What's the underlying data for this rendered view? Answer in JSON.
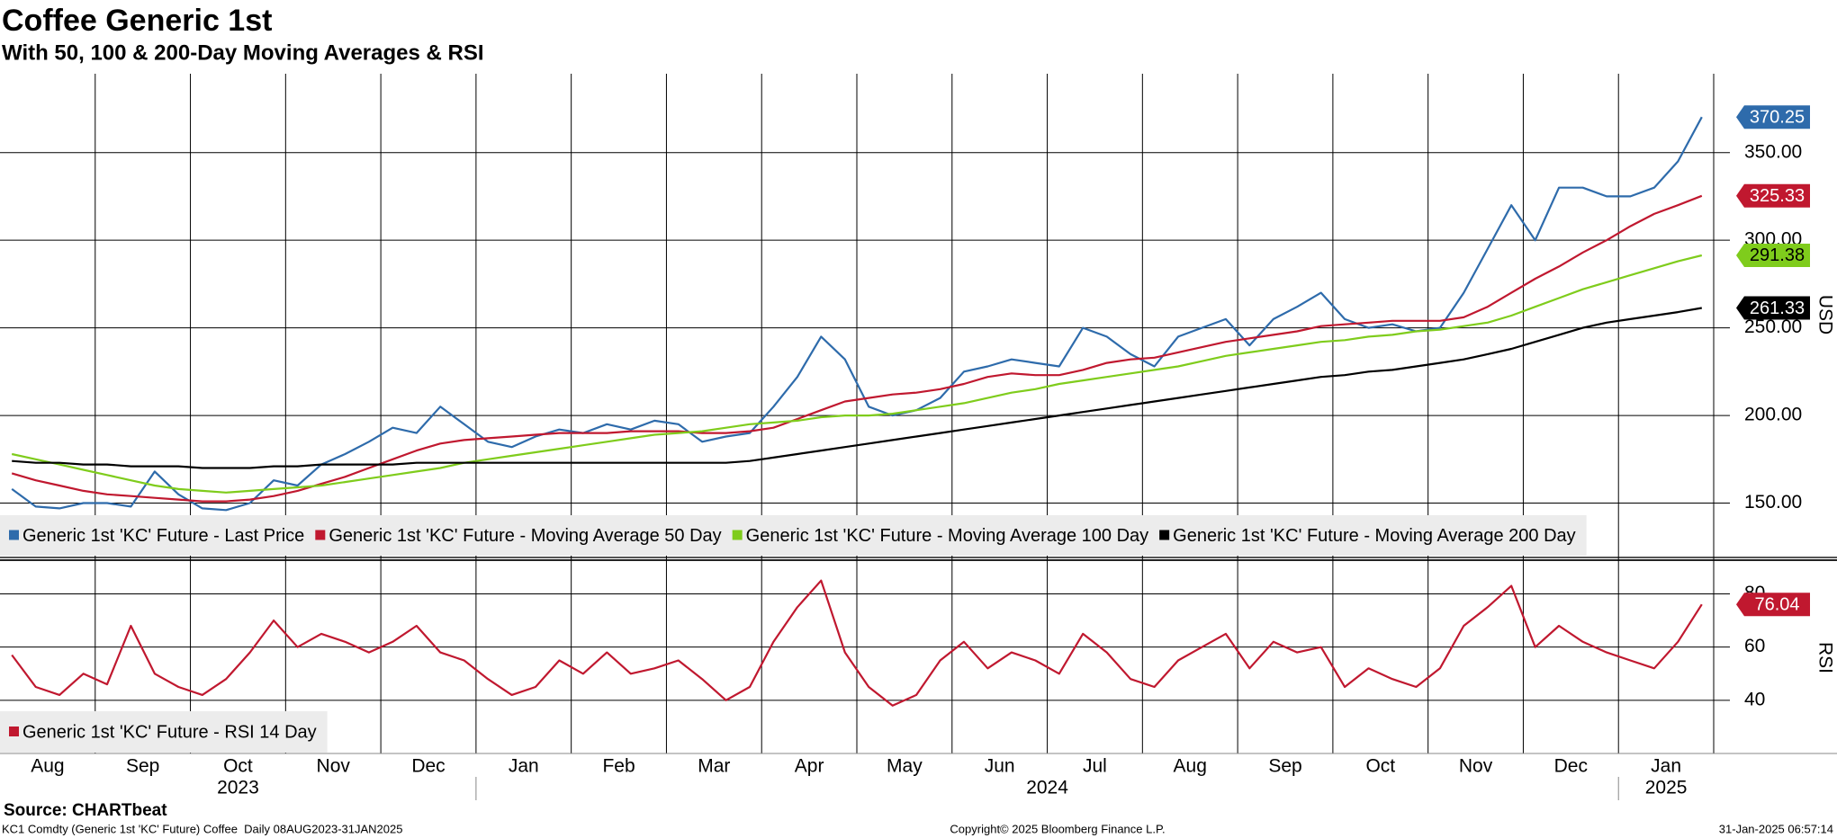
{
  "chart_data": [
    {
      "type": "line",
      "title": "Coffee Generic 1st",
      "subtitle": "With 50, 100 & 200-Day Moving Averages & RSI",
      "ylabel": "USD",
      "grid": true,
      "ylim": [
        120,
        395
      ],
      "yticks": [
        {
          "value": 150,
          "label": "150.00"
        },
        {
          "value": 200,
          "label": "200.00"
        },
        {
          "value": 250,
          "label": "250.00"
        },
        {
          "value": 300,
          "label": "300.00"
        },
        {
          "value": 350,
          "label": "350.00"
        }
      ],
      "series": [
        {
          "name": "Generic 1st 'KC' Future - Last Price",
          "color": "#2e6bab",
          "values": [
            158,
            148,
            147,
            150,
            150,
            148,
            168,
            155,
            147,
            146,
            150,
            163,
            160,
            172,
            178,
            185,
            193,
            190,
            205,
            195,
            185,
            182,
            188,
            192,
            190,
            195,
            192,
            197,
            195,
            185,
            188,
            190,
            205,
            222,
            245,
            232,
            205,
            200,
            203,
            210,
            225,
            228,
            232,
            230,
            228,
            250,
            245,
            235,
            228,
            245,
            250,
            255,
            240,
            255,
            262,
            270,
            255,
            250,
            252,
            248,
            250,
            270,
            295,
            320,
            300,
            330,
            330,
            325,
            325,
            330,
            345,
            370.25
          ]
        },
        {
          "name": "Generic 1st 'KC' Future - Moving Average 50 Day",
          "color": "#c0182f",
          "values": [
            167,
            163,
            160,
            157,
            155,
            154,
            153,
            152,
            151,
            151,
            152,
            154,
            157,
            161,
            165,
            170,
            175,
            180,
            184,
            186,
            187,
            188,
            189,
            190,
            190,
            190,
            191,
            191,
            191,
            190,
            190,
            191,
            193,
            198,
            203,
            208,
            210,
            212,
            213,
            215,
            218,
            222,
            224,
            223,
            223,
            226,
            230,
            232,
            233,
            236,
            239,
            242,
            244,
            246,
            248,
            251,
            252,
            253,
            254,
            254,
            254,
            256,
            262,
            270,
            278,
            285,
            293,
            300,
            308,
            315,
            320,
            325.33
          ]
        },
        {
          "name": "Generic 1st 'KC' Future - Moving Average 100 Day",
          "color": "#7fcc1c",
          "values": [
            178,
            175,
            172,
            169,
            166,
            163,
            160,
            158,
            157,
            156,
            157,
            158,
            159,
            160,
            162,
            164,
            166,
            168,
            170,
            173,
            175,
            177,
            179,
            181,
            183,
            185,
            187,
            189,
            190,
            191,
            193,
            195,
            196,
            197,
            199,
            200,
            200,
            201,
            203,
            205,
            207,
            210,
            213,
            215,
            218,
            220,
            222,
            224,
            226,
            228,
            231,
            234,
            236,
            238,
            240,
            242,
            243,
            245,
            246,
            248,
            249,
            251,
            253,
            257,
            262,
            267,
            272,
            276,
            280,
            284,
            288,
            291.38
          ]
        },
        {
          "name": "Generic 1st 'KC' Future - Moving Average 200 Day",
          "color": "#000000",
          "values": [
            174,
            173,
            173,
            172,
            172,
            171,
            171,
            171,
            170,
            170,
            170,
            171,
            171,
            172,
            172,
            172,
            172,
            173,
            173,
            173,
            173,
            173,
            173,
            173,
            173,
            173,
            173,
            173,
            173,
            173,
            173,
            174,
            176,
            178,
            180,
            182,
            184,
            186,
            188,
            190,
            192,
            194,
            196,
            198,
            200,
            202,
            204,
            206,
            208,
            210,
            212,
            214,
            216,
            218,
            220,
            222,
            223,
            225,
            226,
            228,
            230,
            232,
            235,
            238,
            242,
            246,
            250,
            253,
            255,
            257,
            259,
            261.33
          ]
        }
      ]
    },
    {
      "type": "line",
      "ylabel": "RSI",
      "grid": true,
      "ylim": [
        20,
        92
      ],
      "yticks": [
        40,
        60,
        80
      ],
      "series": [
        {
          "name": "Generic 1st 'KC' Future - RSI 14 Day",
          "color": "#c0182f",
          "values": [
            57,
            45,
            42,
            50,
            46,
            68,
            50,
            45,
            42,
            48,
            58,
            70,
            60,
            65,
            62,
            58,
            62,
            68,
            58,
            55,
            48,
            42,
            45,
            55,
            50,
            58,
            50,
            52,
            55,
            48,
            40,
            45,
            62,
            75,
            85,
            58,
            45,
            38,
            42,
            55,
            62,
            52,
            58,
            55,
            50,
            65,
            58,
            48,
            45,
            55,
            60,
            65,
            52,
            62,
            58,
            60,
            45,
            52,
            48,
            45,
            52,
            68,
            75,
            83,
            60,
            68,
            62,
            58,
            55,
            52,
            62,
            76.04
          ]
        }
      ]
    }
  ],
  "x_axis": {
    "years": [
      {
        "label": "2023",
        "months": [
          "Aug",
          "Sep",
          "Oct",
          "Nov",
          "Dec"
        ]
      },
      {
        "label": "2024",
        "months": [
          "Jan",
          "Feb",
          "Mar",
          "Apr",
          "May",
          "Jun",
          "Jul",
          "Aug",
          "Sep",
          "Oct",
          "Nov",
          "Dec"
        ]
      },
      {
        "label": "2025",
        "months": [
          "Jan"
        ]
      }
    ]
  },
  "source": "Source: CHARTbeat",
  "footer": {
    "left": "KC1 Comdty (Generic 1st 'KC' Future) Coffee  Daily 08AUG2023-31JAN2025",
    "center": "Copyright© 2025 Bloomberg Finance L.P.",
    "right": "31-Jan-2025 06:57:14"
  }
}
